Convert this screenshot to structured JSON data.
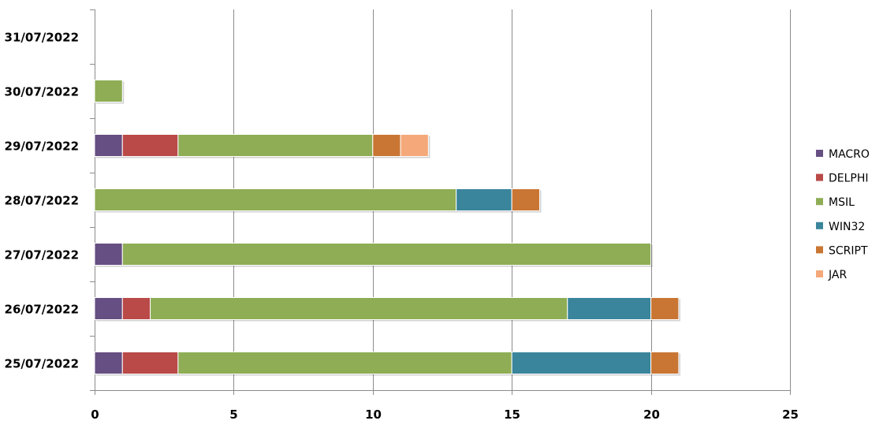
{
  "chart_data": {
    "type": "bar",
    "orientation": "horizontal",
    "stacked": true,
    "title": "",
    "xlabel": "",
    "ylabel": "",
    "xlim": [
      0,
      25
    ],
    "x_ticks": [
      "0",
      "5",
      "10",
      "15",
      "20",
      "25"
    ],
    "grid": true,
    "legend_position": "right",
    "categories": [
      "25/07/2022",
      "26/07/2022",
      "27/07/2022",
      "28/07/2022",
      "29/07/2022",
      "30/07/2022",
      "31/07/2022"
    ],
    "series": [
      {
        "name": "MACRO",
        "color": "#664F82",
        "values": [
          1,
          1,
          1,
          0,
          1,
          0,
          0
        ]
      },
      {
        "name": "DELPHI",
        "color": "#B94A48",
        "values": [
          2,
          1,
          0,
          0,
          2,
          0,
          0
        ]
      },
      {
        "name": "MSIL",
        "color": "#8FAD55",
        "values": [
          12,
          15,
          19,
          13,
          7,
          1,
          0
        ]
      },
      {
        "name": "WIN32",
        "color": "#3A859C",
        "values": [
          5,
          3,
          0,
          2,
          0,
          0,
          0
        ]
      },
      {
        "name": "SCRIPT",
        "color": "#C97634",
        "values": [
          1,
          1,
          0,
          1,
          1,
          0,
          0
        ]
      },
      {
        "name": "JAR",
        "color": "#F5A97A",
        "values": [
          0,
          0,
          0,
          0,
          1,
          0,
          0
        ]
      }
    ]
  }
}
